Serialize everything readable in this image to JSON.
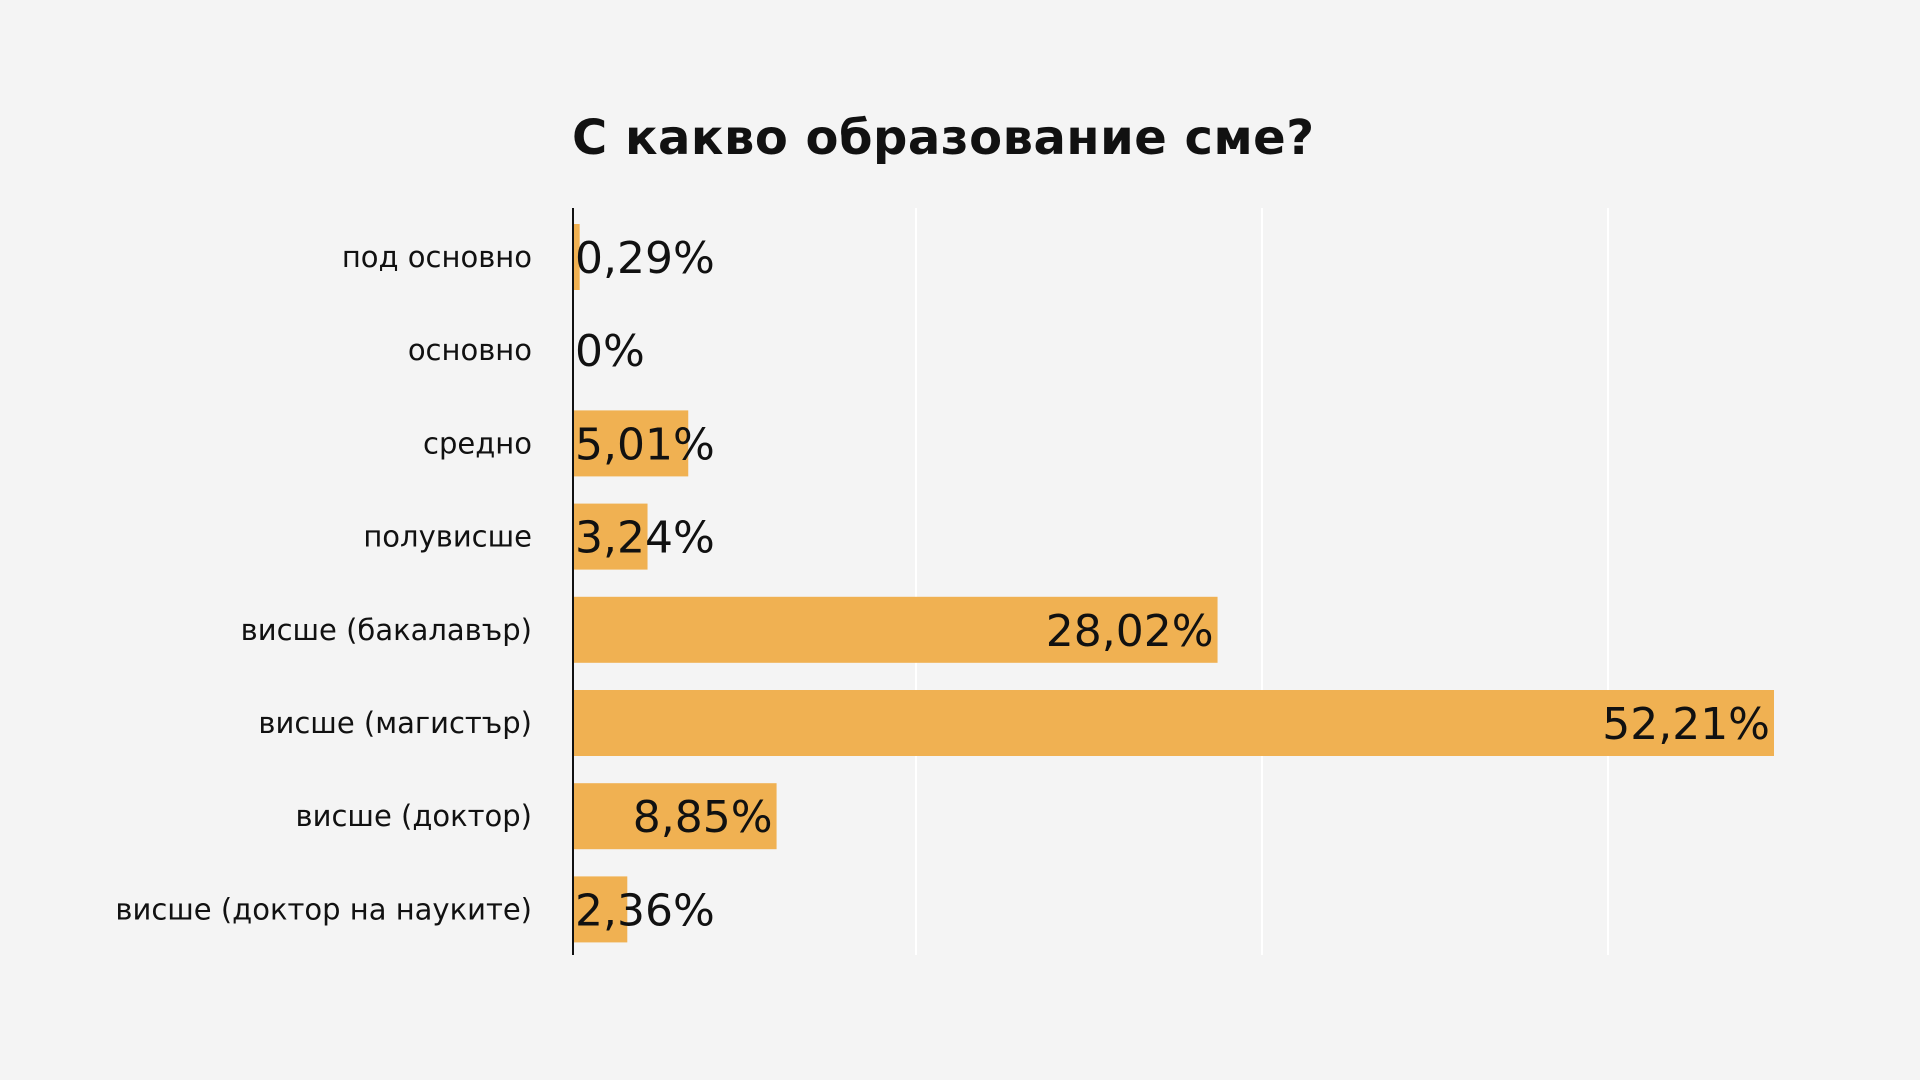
{
  "chart_data": {
    "type": "bar",
    "orientation": "horizontal",
    "title": "С какво образование сме?",
    "xlabel": "",
    "ylabel": "",
    "categories": [
      "под основно",
      "основно",
      "средно",
      "полувисше",
      "висше (бакалавър)",
      "висше (магистър)",
      "висше (доктор)",
      "висше (доктор на науките)"
    ],
    "values": [
      0.29,
      0,
      5.01,
      3.24,
      28.02,
      52.21,
      8.85,
      2.36
    ],
    "value_labels": [
      "0,29%",
      "0%",
      "5,01%",
      "3,24%",
      "28,02%",
      "52,21%",
      "8,85%",
      "2,36%"
    ],
    "xlim": [
      0,
      52.21
    ],
    "grid": true,
    "legend": "none",
    "colors": {
      "bar": "#f0b152",
      "axis": "#111111",
      "grid": "#ffffff",
      "background": "#f4f4f4",
      "text": "#111111"
    }
  }
}
